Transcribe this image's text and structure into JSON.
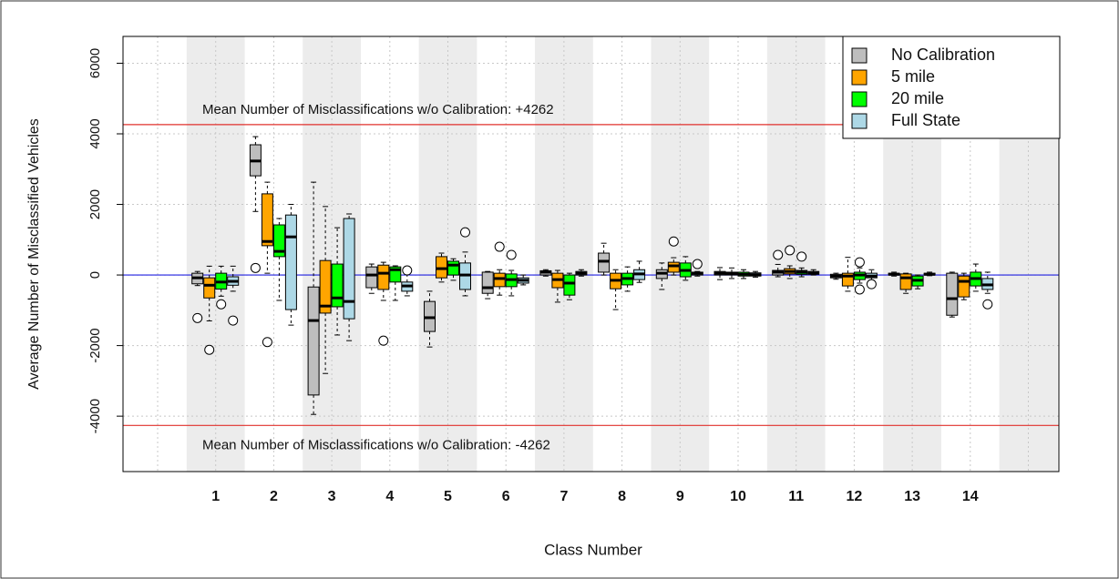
{
  "chart_data": {
    "type": "box",
    "ylabel": "Average Number of Misclassified Vehicles",
    "xlabel": "Class Number",
    "categories": [
      "1",
      "2",
      "3",
      "4",
      "5",
      "6",
      "7",
      "8",
      "9",
      "10",
      "11",
      "12",
      "13",
      "14"
    ],
    "ylim": [
      -5570,
      6760
    ],
    "yticks": [
      -4000,
      -2000,
      0,
      2000,
      4000,
      6000
    ],
    "grid": true,
    "legend": "topright",
    "hlines": [
      {
        "value": 4262,
        "color": "#e0302c",
        "label": "Mean Number of Misclassifications w/o Calibration: +4262"
      },
      {
        "value": -4262,
        "color": "#e0302c",
        "label": "Mean Number of Misclassifications w/o Calibration: -4262"
      },
      {
        "value": 0,
        "color": "#2020e0"
      }
    ],
    "series": [
      {
        "name": "No Calibration",
        "color": "#bebebe",
        "boxes": [
          {
            "min": -300,
            "q1": -250,
            "median": -80,
            "q3": 50,
            "max": 100,
            "outliers": [
              -1220
            ]
          },
          {
            "min": 1800,
            "q1": 2810,
            "median": 3230,
            "q3": 3690,
            "max": 3920,
            "outliers": [
              200
            ]
          },
          {
            "min": -3950,
            "q1": -3400,
            "median": -1290,
            "q3": -340,
            "max": 2630,
            "outliers": []
          },
          {
            "min": -520,
            "q1": -360,
            "median": 0,
            "q3": 230,
            "max": 310,
            "outliers": []
          },
          {
            "min": -2040,
            "q1": -1600,
            "median": -1210,
            "q3": -750,
            "max": -460,
            "outliers": []
          },
          {
            "min": -670,
            "q1": -520,
            "median": -360,
            "q3": 80,
            "max": 100,
            "outliers": []
          },
          {
            "min": -30,
            "q1": 0,
            "median": 80,
            "q3": 120,
            "max": 150,
            "outliers": []
          },
          {
            "min": 0,
            "q1": 80,
            "median": 390,
            "q3": 620,
            "max": 900,
            "outliers": []
          },
          {
            "min": -410,
            "q1": -100,
            "median": 50,
            "q3": 150,
            "max": 340,
            "outliers": []
          },
          {
            "min": -130,
            "q1": 0,
            "median": 50,
            "q3": 100,
            "max": 210,
            "outliers": []
          },
          {
            "min": -50,
            "q1": 0,
            "median": 80,
            "q3": 130,
            "max": 300,
            "outliers": [
              570
            ]
          },
          {
            "min": -120,
            "q1": -80,
            "median": -30,
            "q3": 20,
            "max": 50,
            "outliers": []
          },
          {
            "min": -30,
            "q1": 0,
            "median": 20,
            "q3": 50,
            "max": 80,
            "outliers": []
          },
          {
            "min": -1190,
            "q1": -1140,
            "median": -670,
            "q3": 50,
            "max": 80,
            "outliers": []
          }
        ]
      },
      {
        "name": "5 mile",
        "color": "#ffa500",
        "boxes": [
          {
            "min": -1300,
            "q1": -650,
            "median": -290,
            "q3": -80,
            "max": 250,
            "outliers": [
              -2120
            ]
          },
          {
            "min": 50,
            "q1": 830,
            "median": 950,
            "q3": 2300,
            "max": 2630,
            "outliers": [
              -1900
            ]
          },
          {
            "min": -2790,
            "q1": -1080,
            "median": -880,
            "q3": 410,
            "max": 1940,
            "outliers": []
          },
          {
            "min": -720,
            "q1": -410,
            "median": 50,
            "q3": 280,
            "max": 360,
            "outliers": [
              -1860
            ]
          },
          {
            "min": -200,
            "q1": -80,
            "median": 180,
            "q3": 520,
            "max": 620,
            "outliers": []
          },
          {
            "min": -570,
            "q1": -330,
            "median": -100,
            "q3": 50,
            "max": 150,
            "outliers": [
              800
            ]
          },
          {
            "min": -770,
            "q1": -360,
            "median": -130,
            "q3": 50,
            "max": 130,
            "outliers": []
          },
          {
            "min": -980,
            "q1": -390,
            "median": -150,
            "q3": 50,
            "max": 150,
            "outliers": []
          },
          {
            "min": 0,
            "q1": 80,
            "median": 260,
            "q3": 360,
            "max": 490,
            "outliers": [
              950
            ]
          },
          {
            "min": -100,
            "q1": 0,
            "median": 40,
            "q3": 80,
            "max": 200,
            "outliers": []
          },
          {
            "min": -100,
            "q1": 30,
            "median": 100,
            "q3": 180,
            "max": 260,
            "outliers": [
              700
            ]
          },
          {
            "min": -460,
            "q1": -310,
            "median": -30,
            "q3": 50,
            "max": 500,
            "outliers": []
          },
          {
            "min": -520,
            "q1": -410,
            "median": -80,
            "q3": 30,
            "max": 50,
            "outliers": []
          },
          {
            "min": -700,
            "q1": -620,
            "median": -180,
            "q3": -30,
            "max": 50,
            "outliers": []
          }
        ]
      },
      {
        "name": "20 mile",
        "color": "#00ff00",
        "boxes": [
          {
            "min": -600,
            "q1": -400,
            "median": -200,
            "q3": 50,
            "max": 250,
            "outliers": [
              -830
            ]
          },
          {
            "min": -720,
            "q1": 520,
            "median": 670,
            "q3": 1420,
            "max": 1600,
            "outliers": []
          },
          {
            "min": -1700,
            "q1": -900,
            "median": -650,
            "q3": 310,
            "max": 1340,
            "outliers": []
          },
          {
            "min": -720,
            "q1": -200,
            "median": 150,
            "q3": 230,
            "max": 260,
            "outliers": []
          },
          {
            "min": -150,
            "q1": 0,
            "median": 280,
            "q3": 390,
            "max": 460,
            "outliers": []
          },
          {
            "min": -590,
            "q1": -330,
            "median": -130,
            "q3": 30,
            "max": 130,
            "outliers": [
              570
            ]
          },
          {
            "min": -700,
            "q1": -570,
            "median": -230,
            "q3": 0,
            "max": 50,
            "outliers": []
          },
          {
            "min": -460,
            "q1": -280,
            "median": -100,
            "q3": 50,
            "max": 230,
            "outliers": []
          },
          {
            "min": -150,
            "q1": -50,
            "median": 130,
            "q3": 340,
            "max": 520,
            "outliers": []
          },
          {
            "min": -100,
            "q1": -30,
            "median": 20,
            "q3": 80,
            "max": 150,
            "outliers": []
          },
          {
            "min": -50,
            "q1": 20,
            "median": 80,
            "q3": 130,
            "max": 200,
            "outliers": [
              520
            ]
          },
          {
            "min": -230,
            "q1": -130,
            "median": 0,
            "q3": 80,
            "max": 200,
            "outliers": [
              360,
              -410
            ]
          },
          {
            "min": -390,
            "q1": -310,
            "median": -150,
            "q3": -30,
            "max": 0,
            "outliers": []
          },
          {
            "min": -460,
            "q1": -310,
            "median": -100,
            "q3": 80,
            "max": 310,
            "outliers": []
          }
        ]
      },
      {
        "name": "Full State",
        "color": "#add8e6",
        "boxes": [
          {
            "min": -460,
            "q1": -290,
            "median": -180,
            "q3": -50,
            "max": 250,
            "outliers": [
              -1290
            ]
          },
          {
            "min": -1420,
            "q1": -980,
            "median": 1080,
            "q3": 1700,
            "max": 2000,
            "outliers": []
          },
          {
            "min": -1860,
            "q1": -1240,
            "median": -750,
            "q3": 1600,
            "max": 1730,
            "outliers": []
          },
          {
            "min": -590,
            "q1": -460,
            "median": -310,
            "q3": -200,
            "max": 50,
            "outliers": [
              130
            ]
          },
          {
            "min": -590,
            "q1": -410,
            "median": 0,
            "q3": 340,
            "max": 650,
            "outliers": [
              1210
            ]
          },
          {
            "min": -280,
            "q1": -230,
            "median": -150,
            "q3": -80,
            "max": 0,
            "outliers": []
          },
          {
            "min": -30,
            "q1": 0,
            "median": 50,
            "q3": 100,
            "max": 150,
            "outliers": []
          },
          {
            "min": -210,
            "q1": -130,
            "median": 30,
            "q3": 150,
            "max": 390,
            "outliers": []
          },
          {
            "min": -30,
            "q1": 0,
            "median": 50,
            "q3": 80,
            "max": 100,
            "outliers": [
              310
            ]
          },
          {
            "min": -60,
            "q1": -30,
            "median": 10,
            "q3": 60,
            "max": 100,
            "outliers": []
          },
          {
            "min": 0,
            "q1": 20,
            "median": 60,
            "q3": 100,
            "max": 150,
            "outliers": []
          },
          {
            "min": -150,
            "q1": -80,
            "median": -30,
            "q3": 50,
            "max": 150,
            "outliers": [
              -260
            ]
          },
          {
            "min": -20,
            "q1": 0,
            "median": 20,
            "q3": 50,
            "max": 80,
            "outliers": []
          },
          {
            "min": -520,
            "q1": -410,
            "median": -280,
            "q3": -100,
            "max": 80,
            "outliers": [
              -830
            ]
          }
        ]
      }
    ]
  }
}
